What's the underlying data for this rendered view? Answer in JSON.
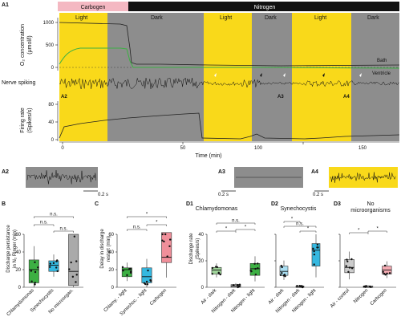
{
  "panel_a1": {
    "label": "A1",
    "top_bar": {
      "carbogen": "Carbogen",
      "nitrogen": "Nitrogen"
    },
    "phases": [
      "Light",
      "Dark",
      "Light",
      "Dark",
      "Light",
      "Dark"
    ],
    "o2_ylabel_1": "O₂ concentration",
    "o2_ylabel_2": "(μmol/l)",
    "o2_ticks": [
      "1000",
      "500",
      "0"
    ],
    "bath_label": "Bath",
    "ventricle_label": "Ventricle",
    "spiking_label": "Nerve spiking",
    "rate_ylabel_1": "Firing rate",
    "rate_ylabel_2": "(Spikes/s)",
    "rate_ticks": [
      "80",
      "40",
      "0"
    ],
    "xticks": [
      "0",
      "50",
      "100",
      "150"
    ],
    "xlabel": "Time (min)",
    "markers": [
      "A2",
      "A3",
      "A4"
    ]
  },
  "panel_a_traces": {
    "a2": {
      "label": "A2",
      "scale": "0.2 s"
    },
    "a3": {
      "label": "A3",
      "scale": "0.2 s"
    },
    "a4": {
      "label": "A4",
      "scale": "0.2 s"
    }
  },
  "panel_b": {
    "label": "B",
    "ylabel_1": "Discharge persistance",
    "ylabel_2": "in N₂ Ringer (min)",
    "yticks": [
      "0",
      "20",
      "40",
      "60"
    ],
    "categories": [
      "Chlamydomonas",
      "Synechocystis",
      "No microorgan."
    ],
    "sig": [
      "n.s.",
      "n.s.",
      "n.s."
    ]
  },
  "panel_c": {
    "label": "C",
    "ylabel_1": "Delay in discharge",
    "ylabel_2": "restart (min)",
    "yticks": [
      "0",
      "20",
      "40",
      "60"
    ],
    "categories": [
      "Chlamy. - light",
      "Synechoc. - light",
      "Carbogen"
    ],
    "sig": [
      "n.s.",
      "*",
      "*"
    ]
  },
  "panel_d": {
    "ylabel_1": "Discharge rate",
    "ylabel_2": "(Spikes/s)",
    "yticks": [
      "0",
      "20",
      "40"
    ],
    "d1": {
      "label": "D1",
      "title": "Chlamydomonas",
      "categories": [
        "Air - dark",
        "Nitrogen - dark",
        "Nitrogen - light"
      ],
      "sig": [
        "n.s.",
        "*",
        "*"
      ]
    },
    "d2": {
      "label": "D2",
      "title": "Synechocystis",
      "categories": [
        "Air - dark",
        "Nitrogen - dark",
        "Nitrogen - light"
      ],
      "sig": [
        "n.s.",
        "*",
        "*"
      ]
    },
    "d3": {
      "label": "D3",
      "title_1": "No",
      "title_2": "microorganisms",
      "categories": [
        "Air - control",
        "Nitrogen",
        "Carbogen"
      ],
      "sig": [
        "*",
        "*"
      ]
    }
  },
  "colors": {
    "light": "#f9d91a",
    "dark": "#8d8d8d",
    "carbogen": "#f4b8c2",
    "nitrogen": "#111111",
    "green": "#3cb043",
    "cyan": "#35b8e0",
    "pink": "#f08f9a"
  },
  "chart_data": [
    {
      "type": "box",
      "panel": "B",
      "categories": [
        "Chlamydomonas",
        "Synechocystis",
        "No microorgan."
      ],
      "median": [
        20,
        25,
        18
      ],
      "q1": [
        5,
        18,
        2
      ],
      "q3": [
        31,
        30,
        60
      ],
      "ylim": [
        0,
        60
      ]
    },
    {
      "type": "box",
      "panel": "C",
      "categories": [
        "Chlamy. - light",
        "Synechoc. - light",
        "Carbogen"
      ],
      "median": [
        20,
        12,
        34
      ],
      "q1": [
        12,
        5,
        28
      ],
      "q3": [
        22,
        22,
        62
      ],
      "ylim": [
        0,
        60
      ]
    },
    {
      "type": "box",
      "panel": "D1",
      "categories": [
        "Air - dark",
        "Nitrogen - dark",
        "Nitrogen - light"
      ],
      "median": [
        13,
        1,
        14
      ],
      "q1": [
        10,
        0,
        9
      ],
      "q3": [
        15,
        2,
        18
      ],
      "ylim": [
        0,
        40
      ]
    },
    {
      "type": "box",
      "panel": "D2",
      "categories": [
        "Air - dark",
        "Nitrogen - dark",
        "Nitrogen - light"
      ],
      "median": [
        12,
        0,
        28
      ],
      "q1": [
        9,
        0,
        16
      ],
      "q3": [
        16,
        1,
        33
      ],
      "ylim": [
        0,
        40
      ]
    },
    {
      "type": "box",
      "panel": "D3",
      "categories": [
        "Air - control",
        "Nitrogen",
        "Carbogen"
      ],
      "median": [
        15,
        0,
        13
      ],
      "q1": [
        11,
        0,
        10
      ],
      "q3": [
        21,
        1,
        16
      ],
      "ylim": [
        0,
        40
      ]
    }
  ]
}
